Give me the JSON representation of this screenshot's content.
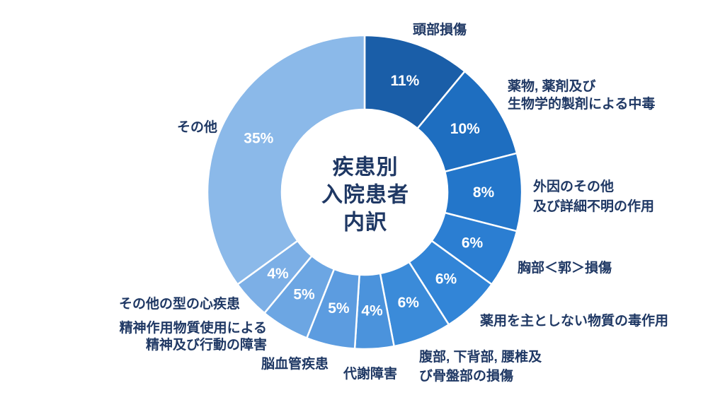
{
  "chart_data": {
    "type": "pie",
    "subtype": "donut",
    "title": "疾患別入院患者内訳",
    "center_text": "疾患別\n入院患者\n内訳",
    "unit": "%",
    "start_angle_deg": 0,
    "direction": "clockwise",
    "legend": false,
    "stroke_color": "#ffffff",
    "label_color": "#1f3864",
    "pct_text_color": "#ffffff",
    "segments": [
      {
        "id": "head-injury",
        "label": "頭部損傷",
        "value": 11,
        "pct_label": "11%",
        "color": "#1a5ea8"
      },
      {
        "id": "drug-poisoning",
        "label": "薬物, 薬剤及び\n生物学的製剤による中毒",
        "value": 10,
        "pct_label": "10%",
        "color": "#1e6ec0"
      },
      {
        "id": "external-causes",
        "label": "外因のその他\n及び詳細不明の作用",
        "value": 8,
        "pct_label": "8%",
        "color": "#2376ca"
      },
      {
        "id": "thorax-injury",
        "label": "胸部＜郭＞損傷",
        "value": 6,
        "pct_label": "6%",
        "color": "#2b7ed2"
      },
      {
        "id": "nonmedicinal-toxic",
        "label": "薬用を主としない物質の毒作用",
        "value": 6,
        "pct_label": "6%",
        "color": "#3285d7"
      },
      {
        "id": "abdomen-injury",
        "label": "腹部, 下背部, 腰椎及\nび骨盤部の損傷",
        "value": 6,
        "pct_label": "6%",
        "color": "#3b8bd9"
      },
      {
        "id": "metabolic-disorders",
        "label": "代謝障害",
        "value": 4,
        "pct_label": "4%",
        "color": "#4b93dc"
      },
      {
        "id": "cerebrovascular",
        "label": "脳血管疾患",
        "value": 5,
        "pct_label": "5%",
        "color": "#5c9ce0"
      },
      {
        "id": "psychoactive-substance",
        "label": "精神作用物質使用による\n精神及び行動の障害",
        "value": 5,
        "pct_label": "5%",
        "color": "#6ca6e3"
      },
      {
        "id": "other-heart-disease",
        "label": "その他の型の心疾患",
        "value": 4,
        "pct_label": "4%",
        "color": "#7cafe6"
      },
      {
        "id": "other",
        "label": "その他",
        "value": 35,
        "pct_label": "35%",
        "color": "#8bb9e9"
      }
    ]
  }
}
